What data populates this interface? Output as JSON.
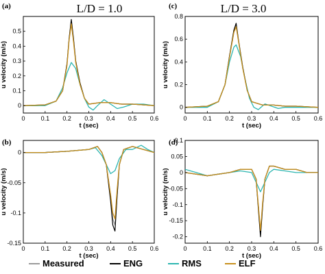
{
  "column_titles": [
    "L/D = 1.0",
    "L/D = 3.0"
  ],
  "legend": [
    {
      "name": "Measured",
      "color": "#9a9a9a"
    },
    {
      "name": "ENG",
      "color": "#000000"
    },
    {
      "name": "RMS",
      "color": "#2bb5b0"
    },
    {
      "name": "ELF",
      "color": "#c8901c"
    }
  ],
  "chart_data": [
    {
      "panel": "(a)",
      "type": "line",
      "xlabel": "t (sec)",
      "ylabel": "u velocity (m/s)",
      "xlim": [
        0,
        0.6
      ],
      "ylim": [
        -0.05,
        0.6
      ],
      "xticks": [
        "0",
        "0.1",
        "0.2",
        "0.3",
        "0.4",
        "0.5",
        "0.6"
      ],
      "yticks": [
        "0",
        "0.1",
        "0.2",
        "0.3",
        "0.4",
        "0.5"
      ],
      "series": [
        {
          "name": "Measured",
          "x": [
            0,
            0.1,
            0.15,
            0.18,
            0.2,
            0.21,
            0.22,
            0.23,
            0.24,
            0.26,
            0.28,
            0.3,
            0.35,
            0.4,
            0.45,
            0.5,
            0.6
          ],
          "y": [
            0,
            0.005,
            0.03,
            0.1,
            0.28,
            0.45,
            0.56,
            0.44,
            0.3,
            0.15,
            0.05,
            0.01,
            0.02,
            0.02,
            0.01,
            0.01,
            0
          ]
        },
        {
          "name": "ENG",
          "x": [
            0,
            0.1,
            0.15,
            0.18,
            0.2,
            0.21,
            0.22,
            0.23,
            0.24,
            0.26,
            0.28,
            0.3,
            0.35,
            0.4,
            0.45,
            0.5,
            0.6
          ],
          "y": [
            0,
            0.005,
            0.03,
            0.1,
            0.28,
            0.45,
            0.58,
            0.45,
            0.3,
            0.15,
            0.05,
            0.01,
            0.02,
            0.02,
            0.01,
            0.01,
            0
          ]
        },
        {
          "name": "RMS",
          "x": [
            0,
            0.1,
            0.15,
            0.18,
            0.2,
            0.22,
            0.24,
            0.26,
            0.28,
            0.3,
            0.32,
            0.34,
            0.37,
            0.4,
            0.43,
            0.46,
            0.5,
            0.55,
            0.6
          ],
          "y": [
            0,
            0,
            0.03,
            0.12,
            0.22,
            0.29,
            0.25,
            0.14,
            0.05,
            -0.01,
            -0.03,
            0,
            0.04,
            0.01,
            -0.02,
            -0.01,
            0.01,
            0.01,
            0
          ]
        },
        {
          "name": "ELF",
          "x": [
            0,
            0.1,
            0.15,
            0.18,
            0.2,
            0.21,
            0.22,
            0.23,
            0.24,
            0.26,
            0.28,
            0.3,
            0.35,
            0.4,
            0.45,
            0.5,
            0.6
          ],
          "y": [
            0,
            0.005,
            0.03,
            0.1,
            0.27,
            0.44,
            0.55,
            0.43,
            0.29,
            0.14,
            0.05,
            0.01,
            0.02,
            0.02,
            0.01,
            0.01,
            0
          ]
        }
      ]
    },
    {
      "panel": "(c)",
      "type": "line",
      "xlabel": "t (sec)",
      "ylabel": "u velocity (m/s)",
      "xlim": [
        0,
        0.6
      ],
      "ylim": [
        -0.05,
        0.8
      ],
      "xticks": [
        "0",
        "0.1",
        "0.2",
        "0.3",
        "0.4",
        "0.5",
        "0.6"
      ],
      "yticks": [
        "0",
        "0.2",
        "0.4",
        "0.6",
        "0.8"
      ],
      "series": [
        {
          "name": "Measured",
          "x": [
            0,
            0.1,
            0.15,
            0.18,
            0.2,
            0.22,
            0.23,
            0.24,
            0.26,
            0.28,
            0.3,
            0.35,
            0.4,
            0.45,
            0.5,
            0.6
          ],
          "y": [
            0,
            0.01,
            0.05,
            0.2,
            0.45,
            0.66,
            0.72,
            0.6,
            0.35,
            0.15,
            0.05,
            0.02,
            0.02,
            0.01,
            0.01,
            0
          ]
        },
        {
          "name": "ENG",
          "x": [
            0,
            0.1,
            0.15,
            0.18,
            0.2,
            0.22,
            0.23,
            0.24,
            0.26,
            0.28,
            0.3,
            0.35,
            0.4,
            0.45,
            0.5,
            0.6
          ],
          "y": [
            0,
            0.01,
            0.05,
            0.2,
            0.45,
            0.68,
            0.74,
            0.6,
            0.35,
            0.15,
            0.05,
            0.02,
            0.02,
            0.01,
            0.01,
            0
          ]
        },
        {
          "name": "RMS",
          "x": [
            0,
            0.1,
            0.15,
            0.18,
            0.2,
            0.22,
            0.23,
            0.25,
            0.27,
            0.29,
            0.31,
            0.33,
            0.36,
            0.39,
            0.42,
            0.45,
            0.5,
            0.6
          ],
          "y": [
            0,
            0,
            0.05,
            0.2,
            0.4,
            0.53,
            0.55,
            0.45,
            0.25,
            0.08,
            0,
            -0.02,
            0.03,
            0.01,
            -0.01,
            0,
            0,
            0
          ]
        },
        {
          "name": "ELF",
          "x": [
            0,
            0.1,
            0.15,
            0.18,
            0.2,
            0.22,
            0.23,
            0.24,
            0.26,
            0.28,
            0.3,
            0.35,
            0.4,
            0.45,
            0.5,
            0.6
          ],
          "y": [
            0,
            0.01,
            0.05,
            0.2,
            0.44,
            0.66,
            0.71,
            0.59,
            0.34,
            0.15,
            0.05,
            0.02,
            0.02,
            0.01,
            0.01,
            0
          ]
        }
      ]
    },
    {
      "panel": "(b)",
      "type": "line",
      "xlabel": "t (sec)",
      "ylabel": "u velocity (m/s)",
      "xlim": [
        0,
        0.6
      ],
      "ylim": [
        -0.15,
        0.02
      ],
      "xticks": [
        "0",
        "0.1",
        "0.2",
        "0.3",
        "0.4",
        "0.5",
        "0.6"
      ],
      "yticks": [
        "-0.15",
        "-0.1",
        "-0.05",
        "0"
      ],
      "series": [
        {
          "name": "Measured",
          "x": [
            0,
            0.1,
            0.2,
            0.3,
            0.34,
            0.36,
            0.38,
            0.4,
            0.41,
            0.42,
            0.43,
            0.44,
            0.46,
            0.5,
            0.55,
            0.6
          ],
          "y": [
            0,
            0,
            0.002,
            0.005,
            0.01,
            0,
            -0.02,
            -0.07,
            -0.11,
            -0.12,
            -0.07,
            -0.02,
            0.005,
            0.01,
            0.005,
            0
          ]
        },
        {
          "name": "ENG",
          "x": [
            0,
            0.1,
            0.2,
            0.3,
            0.34,
            0.36,
            0.38,
            0.4,
            0.41,
            0.42,
            0.43,
            0.44,
            0.46,
            0.5,
            0.55,
            0.6
          ],
          "y": [
            0,
            0,
            0.002,
            0.005,
            0.01,
            0,
            -0.02,
            -0.08,
            -0.12,
            -0.13,
            -0.07,
            -0.02,
            0.005,
            0.01,
            0.005,
            0
          ]
        },
        {
          "name": "RMS",
          "x": [
            0,
            0.1,
            0.2,
            0.3,
            0.33,
            0.36,
            0.38,
            0.4,
            0.42,
            0.44,
            0.47,
            0.5,
            0.54,
            0.57,
            0.6
          ],
          "y": [
            0,
            0,
            0.002,
            0.005,
            0.008,
            -0.005,
            -0.02,
            -0.035,
            -0.03,
            -0.01,
            0.005,
            0.005,
            0.012,
            0.005,
            0
          ]
        },
        {
          "name": "ELF",
          "x": [
            0,
            0.1,
            0.2,
            0.3,
            0.34,
            0.36,
            0.38,
            0.4,
            0.41,
            0.42,
            0.43,
            0.44,
            0.46,
            0.5,
            0.55,
            0.6
          ],
          "y": [
            0,
            0,
            0.002,
            0.005,
            0.01,
            0,
            -0.02,
            -0.07,
            -0.1,
            -0.11,
            -0.06,
            -0.02,
            0.005,
            0.01,
            0.005,
            0
          ]
        }
      ]
    },
    {
      "panel": "(d)",
      "type": "line",
      "xlabel": "t (sec)",
      "ylabel": "u velocity (m/s)",
      "xlim": [
        0,
        0.6
      ],
      "ylim": [
        -0.22,
        0.1
      ],
      "xticks": [
        "0",
        "0.1",
        "0.2",
        "0.3",
        "0.4",
        "0.5",
        "0.6"
      ],
      "yticks": [
        "-0.2",
        "-0.15",
        "-0.1",
        "-0.05",
        "0",
        "0.05",
        "0.1"
      ],
      "series": [
        {
          "name": "Measured",
          "x": [
            0,
            0.1,
            0.2,
            0.25,
            0.3,
            0.32,
            0.33,
            0.34,
            0.35,
            0.36,
            0.38,
            0.4,
            0.45,
            0.5,
            0.55,
            0.6
          ],
          "y": [
            0,
            -0.01,
            0,
            0.01,
            0.01,
            -0.02,
            -0.1,
            -0.19,
            -0.1,
            -0.02,
            0.02,
            0.02,
            0.01,
            0.01,
            0,
            0
          ]
        },
        {
          "name": "ENG",
          "x": [
            0,
            0.1,
            0.2,
            0.25,
            0.3,
            0.32,
            0.33,
            0.34,
            0.35,
            0.36,
            0.38,
            0.4,
            0.45,
            0.5,
            0.55,
            0.6
          ],
          "y": [
            0,
            -0.01,
            0,
            0.01,
            0.01,
            -0.02,
            -0.11,
            -0.2,
            -0.1,
            -0.02,
            0.02,
            0.02,
            0.01,
            0.01,
            0,
            0
          ]
        },
        {
          "name": "RMS",
          "x": [
            0,
            0.05,
            0.1,
            0.15,
            0.2,
            0.25,
            0.3,
            0.32,
            0.34,
            0.36,
            0.38,
            0.4,
            0.45,
            0.5,
            0.55,
            0.6
          ],
          "y": [
            0.01,
            0,
            -0.01,
            -0.005,
            0,
            0.005,
            0,
            -0.03,
            -0.06,
            -0.03,
            0,
            0.01,
            0.005,
            0,
            0,
            0
          ]
        },
        {
          "name": "ELF",
          "x": [
            0,
            0.1,
            0.2,
            0.25,
            0.3,
            0.32,
            0.33,
            0.34,
            0.35,
            0.36,
            0.38,
            0.4,
            0.45,
            0.5,
            0.55,
            0.6
          ],
          "y": [
            0,
            -0.01,
            0,
            0.01,
            0.01,
            -0.02,
            -0.1,
            -0.18,
            -0.09,
            -0.02,
            0.02,
            0.02,
            0.01,
            0.01,
            0,
            0
          ]
        }
      ]
    }
  ]
}
